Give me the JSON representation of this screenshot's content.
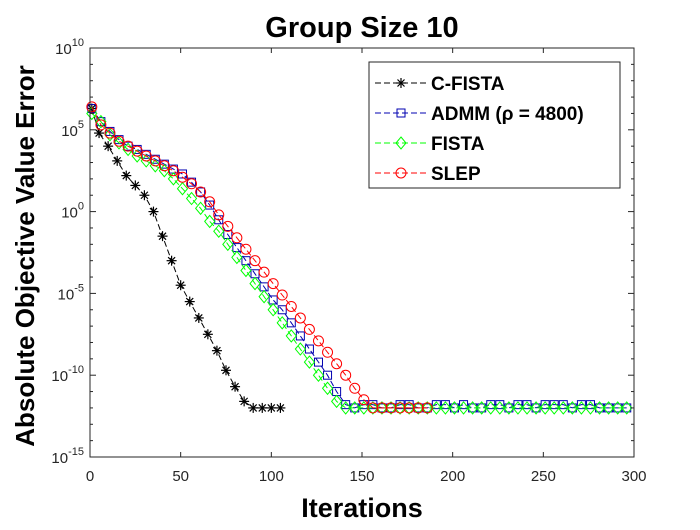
{
  "chart_data": {
    "type": "line",
    "title": "Group Size 10",
    "xlabel": "Iterations",
    "ylabel": "Absolute Objective Value Error",
    "xlim": [
      0,
      300
    ],
    "ylim_log10": [
      -15,
      10
    ],
    "y_scale": "log",
    "xticks": [
      0,
      50,
      100,
      150,
      200,
      250,
      300
    ],
    "xtick_labels": [
      "0",
      "50",
      "100",
      "150",
      "200",
      "250",
      "300"
    ],
    "yticks_log10": [
      -15,
      -10,
      -5,
      0,
      5,
      10
    ],
    "ytick_labels": [
      {
        "base": "10",
        "exp": "-15"
      },
      {
        "base": "10",
        "exp": "-10"
      },
      {
        "base": "10",
        "exp": "-5"
      },
      {
        "base": "10",
        "exp": "0"
      },
      {
        "base": "10",
        "exp": "5"
      },
      {
        "base": "10",
        "exp": "10"
      }
    ],
    "legend_position": "top-right",
    "series": [
      {
        "name": "C-FISTA",
        "color": "#000000",
        "marker": "asterisk",
        "line": "dashed",
        "x": [
          1,
          5,
          10,
          15,
          20,
          25,
          30,
          35,
          40,
          45,
          50,
          55,
          60,
          65,
          70,
          75,
          80,
          85,
          90,
          95,
          100,
          105
        ],
        "log10y": [
          6.3,
          4.8,
          4.0,
          3.1,
          2.2,
          1.6,
          1.0,
          0.0,
          -1.5,
          -3.0,
          -4.5,
          -5.5,
          -6.5,
          -7.5,
          -8.5,
          -9.7,
          -10.7,
          -11.6,
          -12.0,
          -12.0,
          -12.0,
          -12.0
        ]
      },
      {
        "name": "ADMM (ρ = 4800)",
        "color": "#0000b0",
        "marker": "square",
        "line": "dashed",
        "x": [
          1,
          6,
          11,
          16,
          21,
          26,
          31,
          36,
          41,
          46,
          51,
          56,
          61,
          66,
          71,
          76,
          81,
          86,
          91,
          96,
          101,
          106,
          111,
          116,
          121,
          126,
          131,
          136,
          141,
          146,
          151,
          156,
          161,
          166,
          171,
          176,
          181,
          186,
          191,
          196,
          201,
          206,
          211,
          216,
          221,
          226,
          231,
          236,
          241,
          246,
          251,
          256,
          261,
          266,
          271,
          276,
          281,
          286,
          291,
          296
        ],
        "log10y": [
          6.3,
          5.5,
          4.9,
          4.4,
          4.0,
          3.8,
          3.5,
          3.2,
          2.9,
          2.6,
          2.3,
          1.8,
          1.2,
          0.4,
          -0.5,
          -1.4,
          -2.2,
          -3.0,
          -3.8,
          -4.6,
          -5.4,
          -6.0,
          -6.8,
          -7.6,
          -8.4,
          -9.2,
          -10.0,
          -11.0,
          -11.8,
          -12.0,
          -11.8,
          -11.8,
          -12.0,
          -12.0,
          -11.8,
          -11.8,
          -12.0,
          -12.0,
          -11.8,
          -11.8,
          -12.0,
          -11.8,
          -12.0,
          -12.0,
          -11.8,
          -11.8,
          -12.0,
          -11.8,
          -11.8,
          -12.0,
          -11.8,
          -11.8,
          -11.8,
          -12.0,
          -11.8,
          -11.8,
          -12.0,
          -12.0,
          -12.0,
          -12.0
        ]
      },
      {
        "name": "FISTA",
        "color": "#00ff00",
        "marker": "diamond",
        "line": "dashed",
        "x": [
          1,
          6,
          11,
          16,
          21,
          26,
          31,
          36,
          41,
          46,
          51,
          56,
          61,
          66,
          71,
          76,
          81,
          86,
          91,
          96,
          101,
          106,
          111,
          116,
          121,
          126,
          131,
          136,
          141,
          146,
          151,
          156,
          161,
          166,
          171,
          176,
          181,
          186,
          191,
          196,
          201,
          206,
          211,
          216,
          221,
          226,
          231,
          236,
          241,
          246,
          251,
          256,
          261,
          266,
          271,
          276,
          281,
          286,
          291,
          296
        ],
        "log10y": [
          6.0,
          5.5,
          4.7,
          4.2,
          3.8,
          3.4,
          3.1,
          2.8,
          2.5,
          2.0,
          1.4,
          0.8,
          0.2,
          -0.6,
          -1.2,
          -2.0,
          -2.8,
          -3.6,
          -4.4,
          -5.2,
          -6.0,
          -6.8,
          -7.6,
          -8.4,
          -9.2,
          -10.0,
          -10.8,
          -11.6,
          -12.0,
          -12.0,
          -12.0,
          -12.0,
          -12.0,
          -12.0,
          -12.0,
          -12.0,
          -12.0,
          -12.0,
          -12.0,
          -12.0,
          -12.0,
          -12.0,
          -12.0,
          -12.0,
          -12.0,
          -12.0,
          -12.0,
          -12.0,
          -12.0,
          -12.0,
          -12.0,
          -12.0,
          -12.0,
          -12.0,
          -12.0,
          -12.0,
          -12.0,
          -12.0,
          -12.0,
          -12.0
        ]
      },
      {
        "name": "SLEP",
        "color": "#ff0000",
        "marker": "circle",
        "line": "dashed",
        "x": [
          1,
          6,
          11,
          16,
          21,
          26,
          31,
          36,
          41,
          46,
          51,
          56,
          61,
          66,
          71,
          76,
          81,
          86,
          91,
          96,
          101,
          106,
          111,
          116,
          121,
          126,
          131,
          136,
          141,
          146,
          151,
          156,
          161,
          166,
          171,
          176,
          181,
          186
        ],
        "log10y": [
          6.4,
          5.3,
          4.8,
          4.3,
          4.0,
          3.7,
          3.4,
          3.1,
          2.8,
          2.5,
          2.1,
          1.7,
          1.2,
          0.6,
          -0.2,
          -0.9,
          -1.6,
          -2.3,
          -3.0,
          -3.7,
          -4.4,
          -5.1,
          -5.8,
          -6.5,
          -7.2,
          -7.9,
          -8.6,
          -9.3,
          -10.0,
          -10.8,
          -11.5,
          -12.0,
          -12.0,
          -12.0,
          -12.0,
          -12.0,
          -12.0,
          -12.0
        ]
      }
    ]
  }
}
